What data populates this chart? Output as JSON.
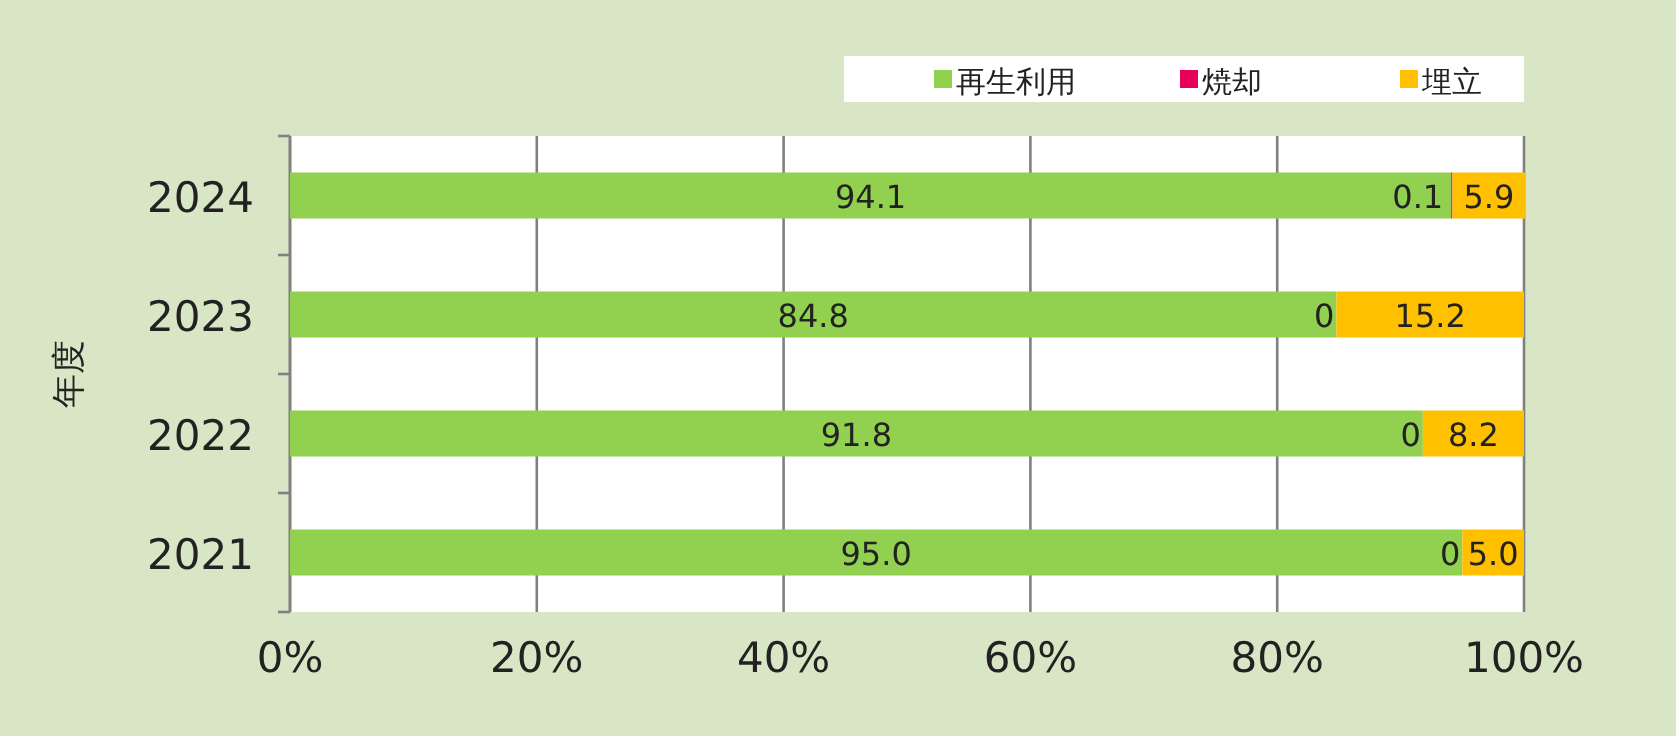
{
  "chart_data": {
    "type": "bar",
    "orientation": "horizontal",
    "stacked": true,
    "ylabel": "年度",
    "categories": [
      "2024",
      "2023",
      "2022",
      "2021"
    ],
    "series": [
      {
        "name": "再生利用",
        "color": "#92d050",
        "values": [
          94.1,
          84.8,
          91.8,
          95.0
        ],
        "value_labels": [
          "94.1",
          "84.8",
          "91.8",
          "95.0"
        ]
      },
      {
        "name": "焼却",
        "color": "#e6005c",
        "values": [
          0.1,
          0,
          0,
          0
        ],
        "value_labels": [
          "0.1",
          "0",
          "0",
          "0"
        ]
      },
      {
        "name": "埋立",
        "color": "#ffc000",
        "values": [
          5.9,
          15.2,
          8.2,
          5.0
        ],
        "value_labels": [
          "5.9",
          "15.2",
          "8.2",
          "5.0"
        ]
      }
    ],
    "xlim": [
      0,
      100
    ],
    "xticks": [
      {
        "value": 0,
        "label": "0%"
      },
      {
        "value": 20,
        "label": "20%"
      },
      {
        "value": 40,
        "label": "40%"
      },
      {
        "value": 60,
        "label": "60%"
      },
      {
        "value": 80,
        "label": "80%"
      },
      {
        "value": 100,
        "label": "100%"
      }
    ],
    "grid": "x",
    "legend": "top right"
  }
}
